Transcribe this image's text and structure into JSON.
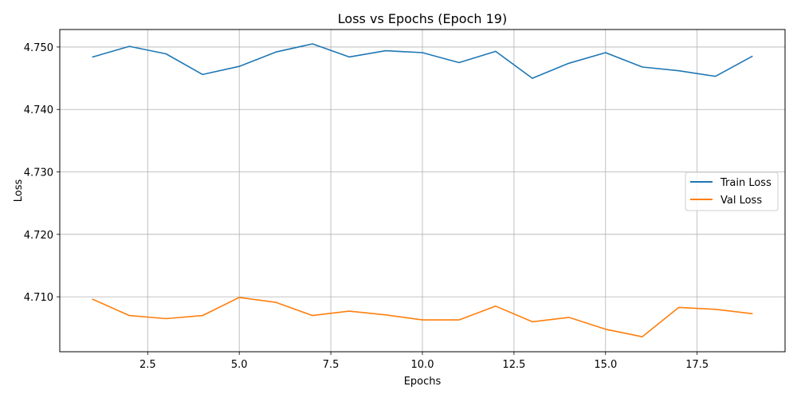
{
  "chart_data": {
    "type": "line",
    "title": "Loss vs Epochs (Epoch 19)",
    "xlabel": "Epochs",
    "ylabel": "Loss",
    "xlim": [
      0.1,
      19.9
    ],
    "ylim": [
      4.7012,
      4.7528
    ],
    "x_ticks": [
      2.5,
      5.0,
      7.5,
      10.0,
      12.5,
      15.0,
      17.5
    ],
    "x_tick_labels": [
      "2.5",
      "5.0",
      "7.5",
      "10.0",
      "12.5",
      "15.0",
      "17.5"
    ],
    "y_ticks": [
      4.71,
      4.72,
      4.73,
      4.74,
      4.75
    ],
    "y_tick_labels": [
      "4.710",
      "4.720",
      "4.730",
      "4.740",
      "4.750"
    ],
    "grid": true,
    "legend_position": "center-right",
    "x": [
      1,
      2,
      3,
      4,
      5,
      6,
      7,
      8,
      9,
      10,
      11,
      12,
      13,
      14,
      15,
      16,
      17,
      18,
      19
    ],
    "series": [
      {
        "name": "Train Loss",
        "color": "#1f77b4",
        "values": [
          4.7484,
          4.7501,
          4.7489,
          4.7456,
          4.7469,
          4.7492,
          4.7505,
          4.7484,
          4.7494,
          4.7491,
          4.7475,
          4.7493,
          4.745,
          4.7474,
          4.7491,
          4.7468,
          4.7462,
          4.7453,
          4.7485
        ]
      },
      {
        "name": "Val Loss",
        "color": "#ff7f0e",
        "values": [
          4.7096,
          4.707,
          4.7065,
          4.707,
          4.7099,
          4.7091,
          4.707,
          4.7077,
          4.7071,
          4.7063,
          4.7063,
          4.7085,
          4.706,
          4.7067,
          4.7048,
          4.7036,
          4.7083,
          4.708,
          4.7073
        ]
      }
    ]
  }
}
